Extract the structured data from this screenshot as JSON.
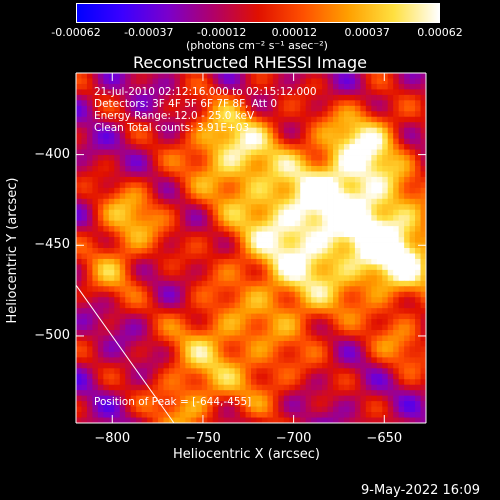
{
  "colorbar": {
    "tick_labels": [
      "-0.00062",
      "-0.00037",
      "-0.00012",
      "0.00012",
      "0.00037",
      "0.00062"
    ],
    "units_label": "(photons cm⁻² s⁻¹ asec⁻²)",
    "colors": [
      "#0000ff",
      "#3b00ff",
      "#7a00cc",
      "#b0006a",
      "#e01000",
      "#ff5000",
      "#ffa000",
      "#ffe040",
      "#ffffff"
    ]
  },
  "chart_data": {
    "type": "heatmap",
    "title": "Reconstructed RHESSI Image",
    "xlabel": "Heliocentric X (arcsec)",
    "ylabel": "Heliocentric Y (arcsec)",
    "xlim": [
      -820,
      -627
    ],
    "ylim": [
      -548,
      -355
    ],
    "x_ticks": [
      -800,
      -750,
      -700,
      -650
    ],
    "x_tick_labels": [
      "−800",
      "−750",
      "−700",
      "−650"
    ],
    "y_ticks": [
      -400,
      -450,
      -500
    ],
    "y_tick_labels": [
      "−400",
      "−450",
      "−500"
    ],
    "value_range": [
      -0.00062,
      0.00062
    ],
    "peak": [
      -644,
      -455
    ],
    "limb_line": [
      [
        -820,
        -472
      ],
      [
        -766,
        -548
      ]
    ],
    "annotations": [
      "21-Jul-2010 02:12:16.000 to 02:15:12.000",
      "Detectors: 3F 4F 5F 6F 7F 8F, Att 0",
      "Energy Range: 12.0 - 25.0 keV",
      "Clean     Total counts: 3.91E+03"
    ],
    "peak_label": "Position of Peak = [-644,-455]"
  },
  "footer": {
    "timestamp": "9-May-2022 16:09"
  }
}
